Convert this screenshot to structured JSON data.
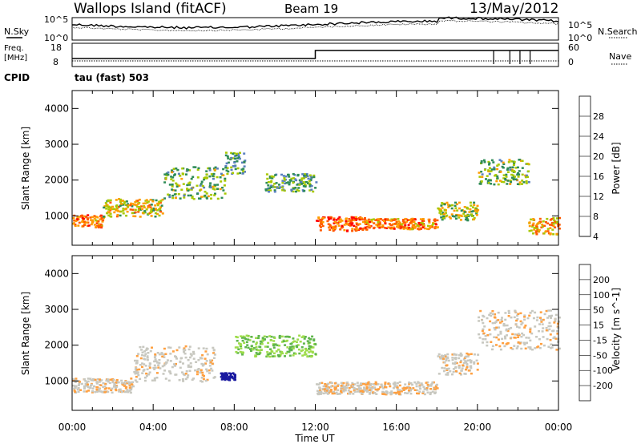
{
  "header": {
    "station": "Wallops Island (fitACF)",
    "beam": "Beam 19",
    "date": "13/May/2012"
  },
  "noise_panel": {
    "left_label": "N.Sky",
    "right_label": "N.Search",
    "left_ticks": [
      "10^5",
      "10^0"
    ],
    "right_ticks": [
      "10^5",
      "10^0"
    ]
  },
  "freq_panel": {
    "left_label_1": "Freq.",
    "left_label_2": "[MHz]",
    "right_label": "Nave",
    "left_ticks": [
      "18",
      "8"
    ],
    "right_ticks": [
      "60",
      "0"
    ],
    "cpid_label": "CPID",
    "cpid_value": "tau (fast) 503"
  },
  "chart_data": [
    {
      "type": "heatmap",
      "name": "power",
      "ylabel": "Slant Range [km]",
      "xlabel": "Time UT",
      "x_ticks": [
        "00:00",
        "04:00",
        "08:00",
        "12:00",
        "16:00",
        "20:00",
        "00:00"
      ],
      "y_ticks": [
        "1000",
        "2000",
        "3000",
        "4000"
      ],
      "ylim": [
        180,
        4500
      ],
      "xlim_hours": [
        0,
        24
      ],
      "colorbar": {
        "label": "Power [dB]",
        "ticks": [
          "28",
          "24",
          "20",
          "16",
          "12",
          "8",
          "4"
        ],
        "colors": [
          "#ff0000",
          "#ff5a00",
          "#ff9c00",
          "#a8c800",
          "#2e8b57",
          "#5a7fbf",
          "#0000ff"
        ]
      },
      "echo_bands": [
        {
          "t0": 0.0,
          "t1": 1.5,
          "r0": 700,
          "r1": 1050,
          "power": 22
        },
        {
          "t0": 1.5,
          "t1": 4.5,
          "r0": 1000,
          "r1": 1500,
          "power": 18
        },
        {
          "t0": 4.5,
          "t1": 7.5,
          "r0": 1500,
          "r1": 2400,
          "power": 14
        },
        {
          "t0": 7.5,
          "t1": 8.5,
          "r0": 2200,
          "r1": 2800,
          "power": 12
        },
        {
          "t0": 9.5,
          "t1": 12.0,
          "r0": 1700,
          "r1": 2200,
          "power": 12
        },
        {
          "t0": 12.0,
          "t1": 14.5,
          "r0": 600,
          "r1": 1000,
          "power": 24
        },
        {
          "t0": 14.5,
          "t1": 18.0,
          "r0": 650,
          "r1": 950,
          "power": 22
        },
        {
          "t0": 18.0,
          "t1": 20.0,
          "r0": 900,
          "r1": 1400,
          "power": 16
        },
        {
          "t0": 20.0,
          "t1": 22.5,
          "r0": 1900,
          "r1": 2600,
          "power": 14
        },
        {
          "t0": 22.5,
          "t1": 24.0,
          "r0": 500,
          "r1": 1000,
          "power": 20
        }
      ]
    },
    {
      "type": "heatmap",
      "name": "velocity",
      "ylabel": "Slant Range [km]",
      "xlabel": "Time UT",
      "x_ticks": [
        "00:00",
        "04:00",
        "08:00",
        "12:00",
        "16:00",
        "20:00",
        "00:00"
      ],
      "y_ticks": [
        "1000",
        "2000",
        "3000",
        "4000"
      ],
      "ylim": [
        180,
        4500
      ],
      "xlim_hours": [
        0,
        24
      ],
      "colorbar": {
        "label": "Velocity [m s^-1]",
        "ticks": [
          "200",
          "100",
          "50",
          "15",
          "-15",
          "-50",
          "-100",
          "-200"
        ],
        "colors": [
          "#1a1aa0",
          "#2e7b3a",
          "#5fb54b",
          "#9edc4b",
          "#c8c8c0",
          "#ffa040",
          "#ff7000",
          "#ff2a00",
          "#e00000"
        ]
      },
      "echo_bands": [
        {
          "t0": 0.0,
          "t1": 3.0,
          "r0": 700,
          "r1": 1100,
          "velocity": -10
        },
        {
          "t0": 3.0,
          "t1": 7.0,
          "r0": 1000,
          "r1": 2000,
          "velocity": -5
        },
        {
          "t0": 7.3,
          "t1": 8.0,
          "r0": 1050,
          "r1": 1250,
          "velocity": 200
        },
        {
          "t0": 8.0,
          "t1": 12.0,
          "r0": 1700,
          "r1": 2300,
          "velocity": 30
        },
        {
          "t0": 12.0,
          "t1": 18.0,
          "r0": 650,
          "r1": 1000,
          "velocity": -10
        },
        {
          "t0": 18.0,
          "t1": 20.0,
          "r0": 1200,
          "r1": 1800,
          "velocity": -10
        },
        {
          "t0": 20.0,
          "t1": 24.0,
          "r0": 1900,
          "r1": 3000,
          "velocity": -10
        }
      ]
    }
  ],
  "axis": {
    "xlabel": "Time UT",
    "x_ticks": [
      "00:00",
      "04:00",
      "08:00",
      "12:00",
      "16:00",
      "20:00",
      "00:00"
    ]
  }
}
